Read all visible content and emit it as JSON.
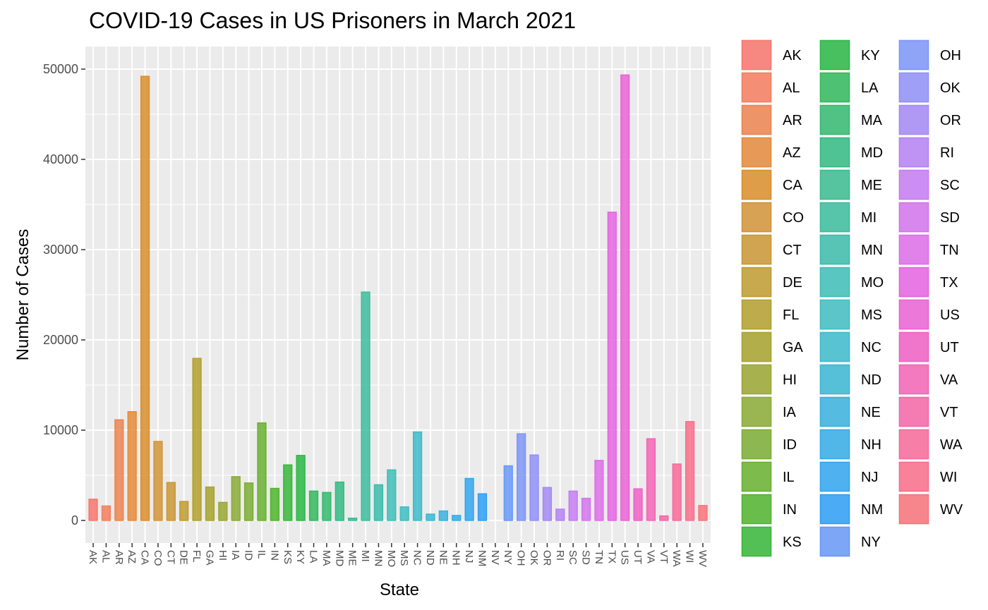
{
  "chart_data": {
    "type": "bar",
    "title": "COVID-19 Cases in US Prisoners in March 2021",
    "xlabel": "State",
    "ylabel": "Number of Cases",
    "ylim": [
      -2500,
      52500
    ],
    "yticks": [
      0,
      10000,
      20000,
      30000,
      40000,
      50000
    ],
    "grid": true,
    "legend_position": "right",
    "categories": [
      "AK",
      "AL",
      "AR",
      "AZ",
      "CA",
      "CO",
      "CT",
      "DE",
      "FL",
      "GA",
      "HI",
      "IA",
      "ID",
      "IL",
      "IN",
      "KS",
      "KY",
      "LA",
      "MA",
      "MD",
      "ME",
      "MI",
      "MN",
      "MO",
      "MS",
      "NC",
      "ND",
      "NE",
      "NH",
      "NJ",
      "NM",
      "NV",
      "NY",
      "OH",
      "OK",
      "OR",
      "RI",
      "SC",
      "SD",
      "TN",
      "TX",
      "US",
      "UT",
      "VA",
      "VT",
      "WA",
      "WI",
      "WV"
    ],
    "x_tick_labels": [
      "AK",
      "AL",
      "AR",
      "AZ",
      "CA",
      "CO",
      "CT",
      "DE",
      "FL",
      "GA",
      "HI",
      "IA",
      "ID",
      "IL",
      "IN",
      "KS",
      "KY",
      "LA",
      "MA",
      "MD",
      "ME",
      "MI",
      "MN",
      "MO",
      "MS",
      "NC",
      "ND",
      "NE",
      "NH",
      "NJ",
      "NM",
      "NV",
      "NY",
      "OH",
      "OK",
      "OR",
      "RI",
      "SC",
      "SD",
      "TN",
      "TX",
      "US",
      "UT",
      "VA",
      "VT",
      "WA",
      "WI",
      "WV"
    ],
    "values": [
      2350,
      1600,
      11150,
      12050,
      49200,
      8750,
      4200,
      2100,
      17950,
      3700,
      2000,
      4850,
      4150,
      10800,
      3550,
      6150,
      7200,
      3250,
      3100,
      4250,
      250,
      25300,
      3950,
      5600,
      1500,
      9800,
      700,
      1050,
      550,
      4650,
      2950,
      0,
      6050,
      9600,
      7250,
      3650,
      1250,
      3250,
      2450,
      6650,
      34150,
      49350,
      3500,
      9050,
      500,
      6250,
      10950,
      1650
    ],
    "legend": [
      "AK",
      "AL",
      "AR",
      "AZ",
      "CA",
      "CO",
      "CT",
      "DE",
      "FL",
      "GA",
      "HI",
      "IA",
      "ID",
      "IL",
      "IN",
      "KS",
      "KY",
      "LA",
      "MA",
      "MD",
      "ME",
      "MI",
      "MN",
      "MO",
      "MS",
      "NC",
      "ND",
      "NE",
      "NH",
      "NJ",
      "NM",
      "NY",
      "OH",
      "OK",
      "OR",
      "RI",
      "SC",
      "SD",
      "TN",
      "TX",
      "US",
      "UT",
      "VA",
      "VT",
      "WA",
      "WI",
      "WV"
    ],
    "colors": {
      "AK": "#F8766D",
      "AL": "#F47E5F",
      "AR": "#EC8450",
      "AZ": "#E58B3C",
      "CA": "#DB8E2B",
      "CO": "#D39438",
      "CT": "#C99835",
      "DE": "#BF9C31",
      "FL": "#B3A02E",
      "GA": "#A7A32E",
      "HI": "#9AA732",
      "IA": "#8BAB36",
      "ID": "#7BAE35",
      "IL": "#68B130",
      "IN": "#50B42E",
      "KS": "#37B73A",
      "KY": "#2BB747",
      "LA": "#33B95D",
      "MA": "#35BA70",
      "MD": "#33BB82",
      "ME": "#39BC90",
      "MI": "#3CBD9D",
      "MN": "#3CBCAA",
      "MO": "#3FBEB8",
      "MS": "#41BDC2",
      "NC": "#3DBBCB",
      "ND": "#3BB7D4",
      "NE": "#39B2DE",
      "NH": "#35ACE6",
      "NJ": "#33A6EE",
      "NM": "#2E9FF5",
      "NV": "#3A98F8",
      "NY": "#6899F7",
      "OH": "#7E96F8",
      "OK": "#9090F9",
      "OR": "#A48AF5",
      "RI": "#B583F3",
      "SC": "#C57CF2",
      "SD": "#D374EE",
      "TN": "#DE6DE9",
      "TX": "#E565E2",
      "US": "#EB63D5",
      "UT": "#F060C6",
      "VA": "#F365B5",
      "VT": "#F567A8",
      "WA": "#F86A9A",
      "WI": "#F86E8B",
      "WV": "#F8737A"
    }
  }
}
